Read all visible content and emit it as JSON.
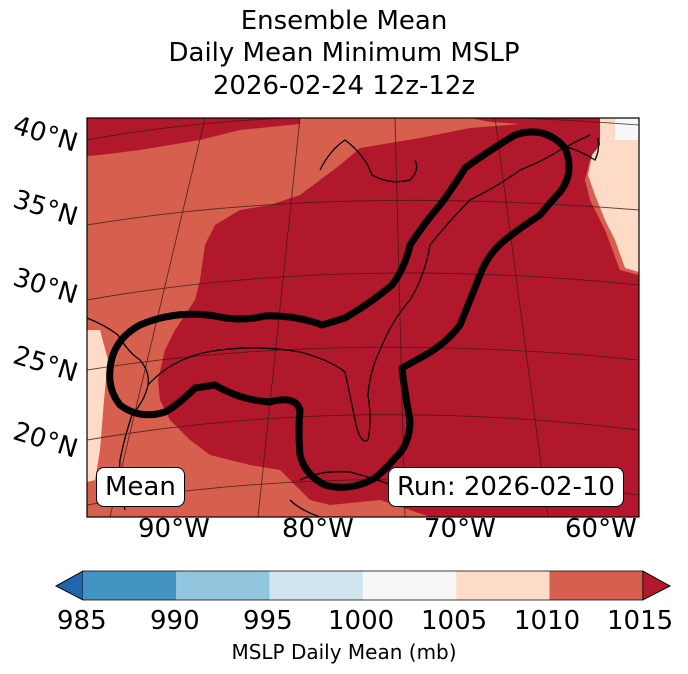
{
  "title": {
    "line1": "Ensemble Mean",
    "line2": "Daily Mean Minimum MSLP",
    "line3": "2026-02-24 12z-12z"
  },
  "map": {
    "lat_labels": [
      "40°N",
      "35°N",
      "30°N",
      "25°N",
      "20°N"
    ],
    "lon_labels": [
      "90°W",
      "80°W",
      "70°W",
      "60°W"
    ],
    "mean_label": "Mean",
    "run_label": "Run: 2026-02-10",
    "fill_colors": {
      "1005-1010": "#fddbc7",
      "1010-1015": "#d6604d",
      "above-1015": "#b2182b"
    }
  },
  "colorbar": {
    "label": "MSLP Daily Mean (mb)",
    "ticks": [
      "985",
      "990",
      "995",
      "1000",
      "1005",
      "1010",
      "1015"
    ],
    "under_color": "#2166ac",
    "bins": [
      {
        "range": "985-990",
        "color": "#4393c3"
      },
      {
        "range": "990-995",
        "color": "#92c5de"
      },
      {
        "range": "995-1000",
        "color": "#d1e5f0"
      },
      {
        "range": "1000-1005",
        "color": "#f7f7f7"
      },
      {
        "range": "1005-1010",
        "color": "#fddbc7"
      },
      {
        "range": "1010-1015",
        "color": "#d6604d"
      }
    ],
    "over_color": "#b2182b"
  }
}
